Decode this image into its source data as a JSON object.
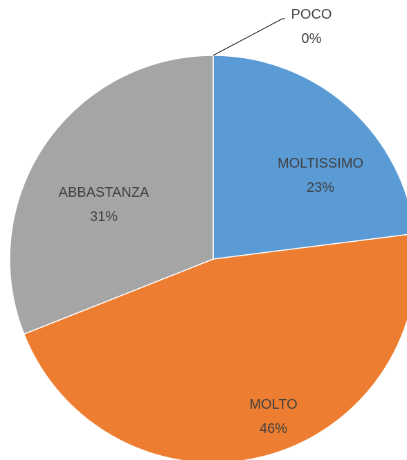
{
  "chart_data": {
    "type": "pie",
    "categories": [
      "MOLTISSIMO",
      "MOLTO",
      "ABBASTANZA",
      "POCO"
    ],
    "values": [
      23,
      46,
      31,
      0
    ],
    "value_labels": [
      "23%",
      "46%",
      "31%",
      "0%"
    ],
    "colors": [
      "#5b9bd5",
      "#ed7d31",
      "#a5a5a5",
      "#ffc000"
    ]
  }
}
